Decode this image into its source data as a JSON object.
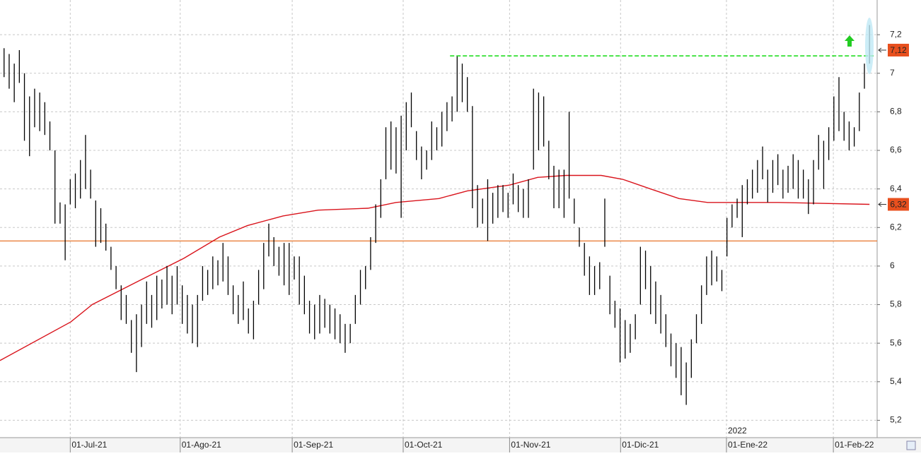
{
  "chart_data": {
    "type": "ohlc",
    "xlim": [
      -0.8,
      171.5
    ],
    "ylim": [
      5.11,
      7.38
    ],
    "grid": true,
    "yticks": [
      {
        "value": 5.2,
        "label": "5,2"
      },
      {
        "value": 5.4,
        "label": "5,4"
      },
      {
        "value": 5.6,
        "label": "5,6"
      },
      {
        "value": 5.8,
        "label": "5,8"
      },
      {
        "value": 6,
        "label": "6"
      },
      {
        "value": 6.2,
        "label": "6,2"
      },
      {
        "value": 6.4,
        "label": "6,4"
      },
      {
        "value": 6.6,
        "label": "6,6"
      },
      {
        "value": 6.8,
        "label": "6,8"
      },
      {
        "value": 7,
        "label": "7"
      },
      {
        "value": 7.2,
        "label": "7,2"
      }
    ],
    "xticks": [
      {
        "value": 13,
        "label": "01-Jul-21"
      },
      {
        "value": 34.6,
        "label": "01-Ago-21"
      },
      {
        "value": 56.6,
        "label": "01-Sep-21"
      },
      {
        "value": 78.4,
        "label": "01-Oct-21"
      },
      {
        "value": 99.3,
        "label": "01-Nov-21"
      },
      {
        "value": 121.1,
        "label": "01-Dic-21"
      },
      {
        "value": 141.9,
        "label": "01-Ene-22"
      },
      {
        "value": 162.9,
        "label": "01-Feb-22"
      }
    ],
    "year_label": "2022",
    "bars": {
      "color": "#000000",
      "high": [
        7.13,
        7.1,
        7.05,
        7.12,
        7.0,
        6.88,
        6.92,
        6.9,
        6.85,
        6.75,
        6.6,
        6.33,
        6.32,
        6.45,
        6.48,
        6.55,
        6.68,
        6.5,
        6.34,
        6.3,
        6.22,
        6.1,
        6.0,
        5.9,
        5.85,
        5.72,
        5.75,
        5.8,
        5.92,
        5.85,
        5.95,
        5.93,
        6.0,
        5.95,
        6.0,
        5.9,
        5.85,
        5.8,
        5.85,
        6.0,
        5.98,
        6.05,
        6.03,
        6.12,
        6.05,
        5.9,
        5.85,
        5.92,
        5.78,
        5.82,
        5.98,
        6.12,
        6.22,
        6.15,
        6.1,
        6.12,
        6.12,
        6.05,
        6.05,
        5.95,
        5.82,
        5.8,
        5.85,
        5.83,
        5.8,
        5.78,
        5.75,
        5.7,
        5.7,
        5.85,
        5.98,
        6.0,
        6.15,
        6.32,
        6.45,
        6.72,
        6.75,
        6.72,
        6.78,
        6.85,
        6.9,
        6.7,
        6.62,
        6.6,
        6.75,
        6.72,
        6.8,
        6.85,
        6.88,
        7.09,
        7.05,
        6.98,
        6.83,
        6.42,
        6.35,
        6.45,
        6.38,
        6.42,
        6.42,
        6.38,
        6.48,
        6.42,
        6.4,
        6.45,
        6.92,
        6.9,
        6.88,
        6.65,
        6.52,
        6.5,
        6.5,
        6.8,
        6.35,
        6.2,
        6.12,
        6.05,
        6.0,
        6.02,
        6.35,
        5.95,
        5.82,
        5.78,
        5.72,
        5.7,
        5.75,
        6.1,
        6.08,
        6.0,
        5.92,
        5.85,
        5.75,
        5.65,
        5.6,
        5.58,
        5.5,
        5.62,
        5.75,
        5.9,
        6.05,
        6.08,
        6.05,
        5.98,
        6.25,
        6.32,
        6.35,
        6.42,
        6.45,
        6.5,
        6.55,
        6.62,
        6.5,
        6.55,
        6.58,
        6.5,
        6.52,
        6.58,
        6.55,
        6.5,
        6.45,
        6.55,
        6.68,
        6.65,
        6.72,
        6.88,
        6.98,
        6.8,
        6.75,
        6.72,
        6.9,
        7.05,
        7.25
      ],
      "low": [
        6.98,
        6.92,
        6.85,
        6.95,
        6.65,
        6.57,
        6.72,
        6.7,
        6.68,
        6.6,
        6.22,
        6.22,
        6.03,
        6.32,
        6.3,
        6.35,
        6.4,
        6.35,
        6.1,
        6.12,
        6.08,
        5.98,
        5.88,
        5.72,
        5.7,
        5.55,
        5.45,
        5.58,
        5.7,
        5.68,
        5.72,
        5.78,
        5.8,
        5.75,
        5.8,
        5.7,
        5.65,
        5.6,
        5.58,
        5.82,
        5.85,
        5.88,
        5.9,
        5.92,
        5.85,
        5.75,
        5.7,
        5.72,
        5.65,
        5.62,
        5.8,
        5.88,
        6.05,
        6.0,
        5.95,
        5.9,
        5.85,
        5.93,
        5.8,
        5.75,
        5.65,
        5.62,
        5.65,
        5.68,
        5.65,
        5.62,
        5.6,
        5.55,
        5.6,
        5.7,
        5.8,
        5.88,
        5.98,
        6.12,
        6.25,
        6.45,
        6.5,
        6.48,
        6.25,
        6.6,
        6.72,
        6.55,
        6.45,
        6.5,
        6.55,
        6.6,
        6.62,
        6.7,
        6.75,
        6.8,
        6.85,
        6.8,
        6.3,
        6.2,
        6.22,
        6.13,
        6.22,
        6.25,
        6.28,
        6.25,
        6.32,
        6.28,
        6.25,
        6.25,
        6.5,
        6.6,
        6.62,
        6.45,
        6.3,
        6.3,
        6.25,
        6.35,
        6.22,
        6.1,
        5.95,
        5.85,
        5.85,
        5.88,
        6.1,
        5.75,
        5.68,
        5.5,
        5.52,
        5.55,
        5.62,
        5.8,
        5.88,
        5.75,
        5.7,
        5.65,
        5.58,
        5.48,
        5.42,
        5.33,
        5.28,
        5.42,
        5.6,
        5.7,
        5.85,
        5.9,
        5.92,
        5.87,
        6.05,
        6.2,
        6.25,
        6.15,
        6.32,
        6.35,
        6.38,
        6.45,
        6.33,
        6.38,
        6.42,
        6.35,
        6.38,
        6.4,
        6.35,
        6.35,
        6.27,
        6.32,
        6.5,
        6.4,
        6.55,
        6.65,
        6.7,
        6.65,
        6.6,
        6.62,
        6.7,
        6.92,
        7.05
      ]
    },
    "moving_average": {
      "color": "#d9141c",
      "x": [
        -0.8,
        13.1,
        17.3,
        27,
        35.3,
        42.3,
        47.8,
        54.8,
        61.7,
        71.5,
        77,
        85.4,
        91,
        99.3,
        104.8,
        110.4,
        117.3,
        121.5,
        127,
        132.6,
        138.2,
        142.4,
        152,
        170
      ],
      "values": [
        5.51,
        5.71,
        5.8,
        5.93,
        6.04,
        6.15,
        6.21,
        6.26,
        6.29,
        6.3,
        6.33,
        6.35,
        6.39,
        6.42,
        6.46,
        6.47,
        6.47,
        6.45,
        6.4,
        6.35,
        6.33,
        6.33,
        6.33,
        6.32
      ]
    },
    "support": {
      "value": 6.13,
      "color": "#e8762b"
    },
    "resistance": {
      "value": 7.09,
      "x_start": 87.6,
      "color": "#22dd22"
    },
    "price_tags": [
      {
        "value": 7.12,
        "label": "7,12",
        "color": "#e8501e"
      },
      {
        "value": 6.32,
        "label": "6,32",
        "color": "#e8501e"
      }
    ]
  }
}
